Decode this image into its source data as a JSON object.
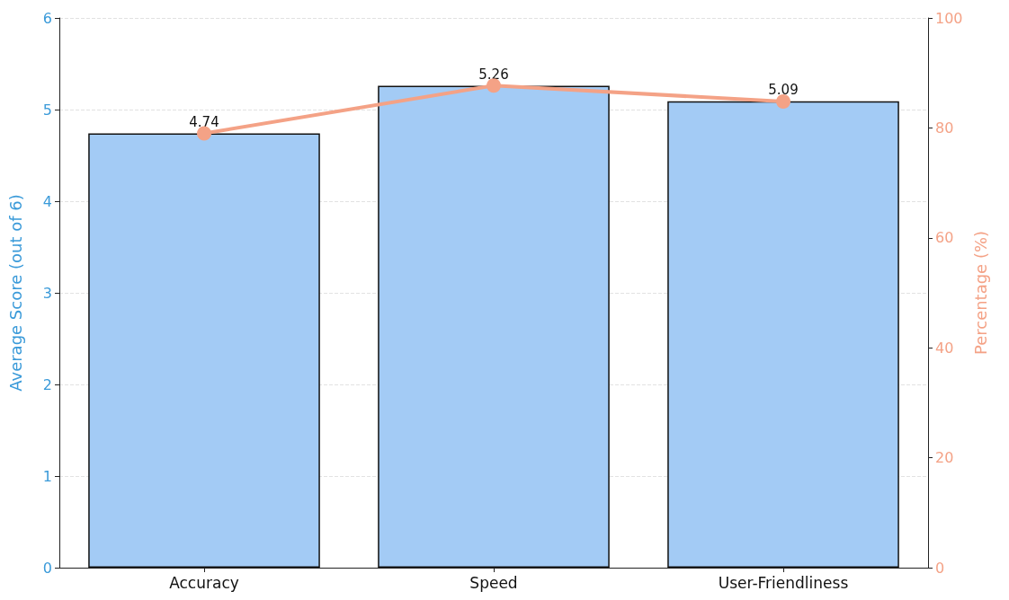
{
  "chart_data": {
    "type": "bar",
    "categories": [
      "Accuracy",
      "Speed",
      "User-Friendliness"
    ],
    "ylabel": "Average Score (out of 6)",
    "y2label": "Percentage (%)",
    "series": [
      {
        "color": "#a3cbf5",
        "values": [
          4.74,
          5.26,
          5.09
        ],
        "value_labels": [
          "4.74",
          "5.26",
          "5.09"
        ]
      },
      {
        "type": "line",
        "axis": "y2",
        "color": "#f4a286",
        "values": [
          79.0,
          87.7,
          84.8
        ]
      }
    ],
    "ylim": [
      0,
      6
    ],
    "yticks": [
      0,
      1,
      2,
      3,
      4,
      5,
      6
    ],
    "y2lim": [
      0,
      100
    ],
    "y2ticks": [
      0,
      20,
      40,
      60,
      80,
      100
    ],
    "grid": "y",
    "marker": "circle",
    "line_style": "solid"
  }
}
